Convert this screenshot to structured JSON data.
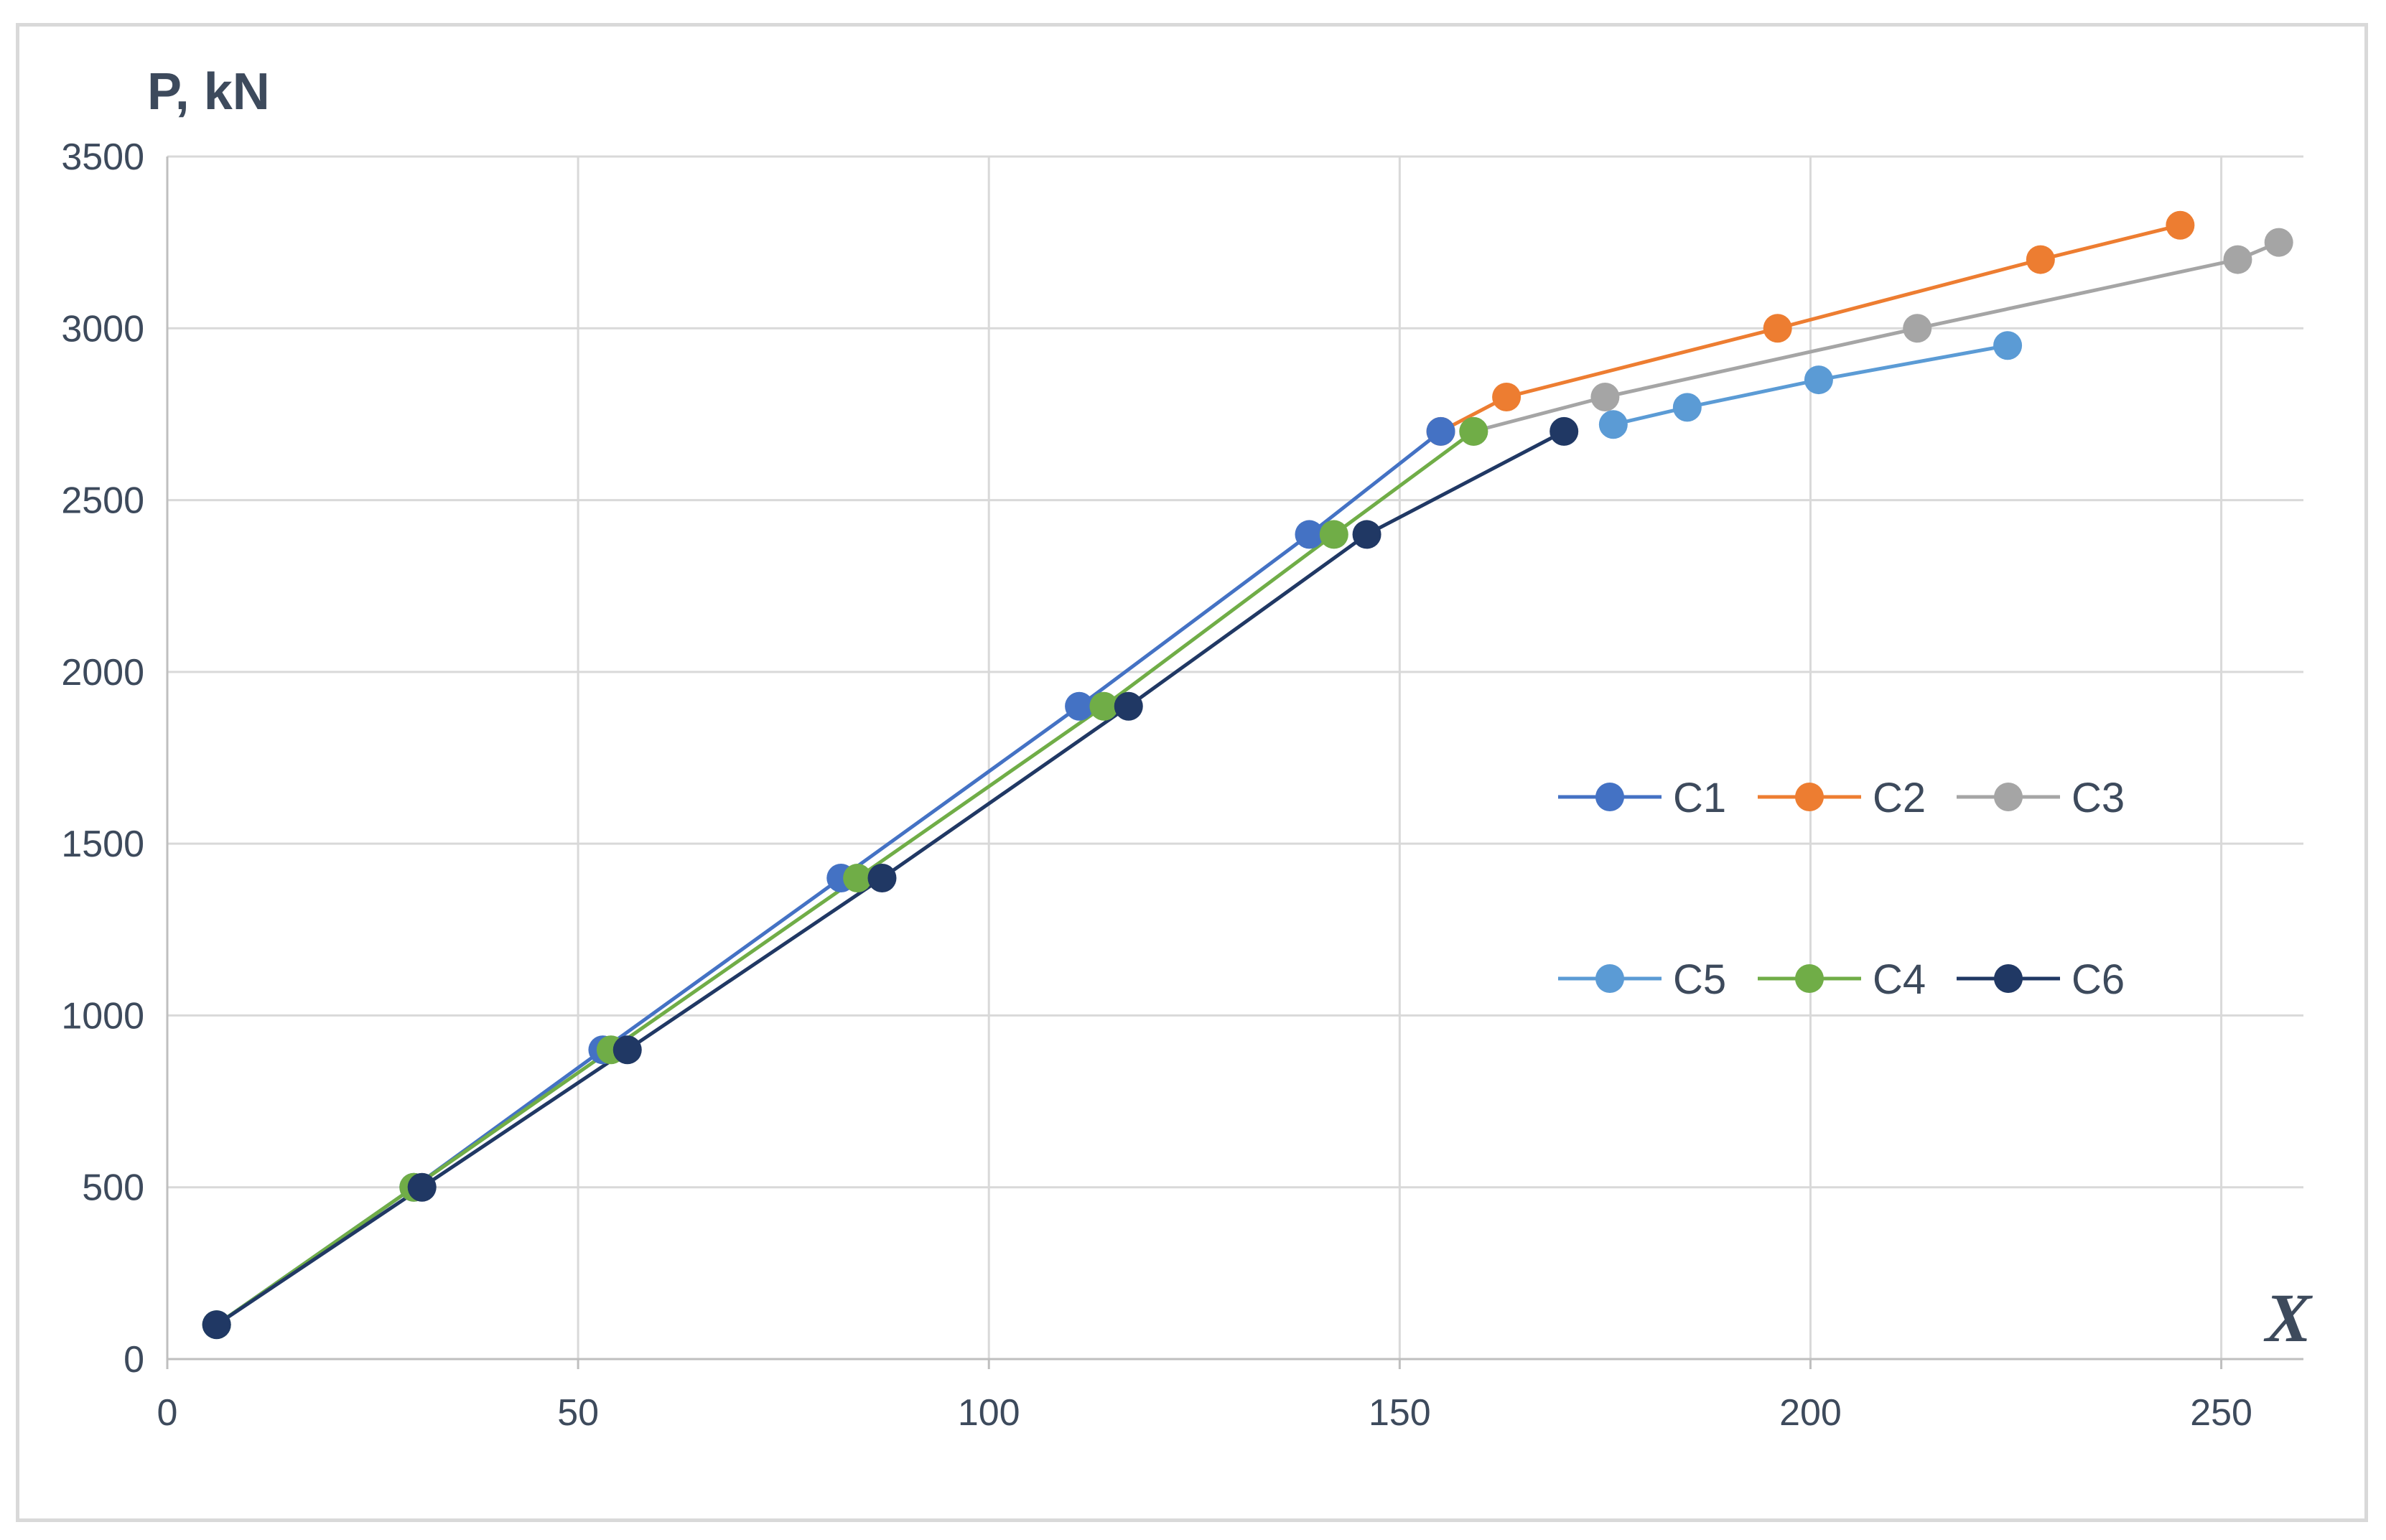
{
  "chart_data": {
    "type": "line",
    "title": "",
    "ylabel": "P, kN",
    "xlabel": "X",
    "xlim": [
      0,
      260
    ],
    "ylim": [
      0,
      3500
    ],
    "xticks": [
      0,
      50,
      100,
      150,
      200,
      250
    ],
    "yticks": [
      0,
      500,
      1000,
      1500,
      2000,
      2500,
      3000,
      3500
    ],
    "grid": true,
    "legend_position": "center-right",
    "legend_order": [
      [
        "C1",
        "C2",
        "C3"
      ],
      [
        "C5",
        "C4",
        "C6"
      ]
    ],
    "series": [
      {
        "name": "C1",
        "color": "#4472c4",
        "x": [
          6,
          30,
          53,
          82,
          111,
          139,
          155
        ],
        "y": [
          100,
          500,
          900,
          1400,
          1900,
          2400,
          2700
        ]
      },
      {
        "name": "C2",
        "color": "#ed7d31",
        "x": [
          155,
          163,
          196,
          228,
          245
        ],
        "y": [
          2700,
          2800,
          3000,
          3200,
          3300
        ]
      },
      {
        "name": "C3",
        "color": "#a5a5a5",
        "x": [
          159,
          175,
          213,
          252,
          257
        ],
        "y": [
          2700,
          2800,
          3000,
          3200,
          3250
        ]
      },
      {
        "name": "C4",
        "color": "#70ad47",
        "x": [
          6,
          30,
          54,
          84,
          114,
          142,
          159
        ],
        "y": [
          100,
          500,
          900,
          1400,
          1900,
          2400,
          2700
        ]
      },
      {
        "name": "C5",
        "color": "#5b9bd5",
        "x": [
          176,
          185,
          201,
          224
        ],
        "y": [
          2720,
          2770,
          2850,
          2950
        ]
      },
      {
        "name": "C6",
        "color": "#203864",
        "x": [
          6,
          31,
          56,
          87,
          117,
          146,
          170
        ],
        "y": [
          100,
          500,
          900,
          1400,
          1900,
          2400,
          2700
        ]
      }
    ]
  }
}
